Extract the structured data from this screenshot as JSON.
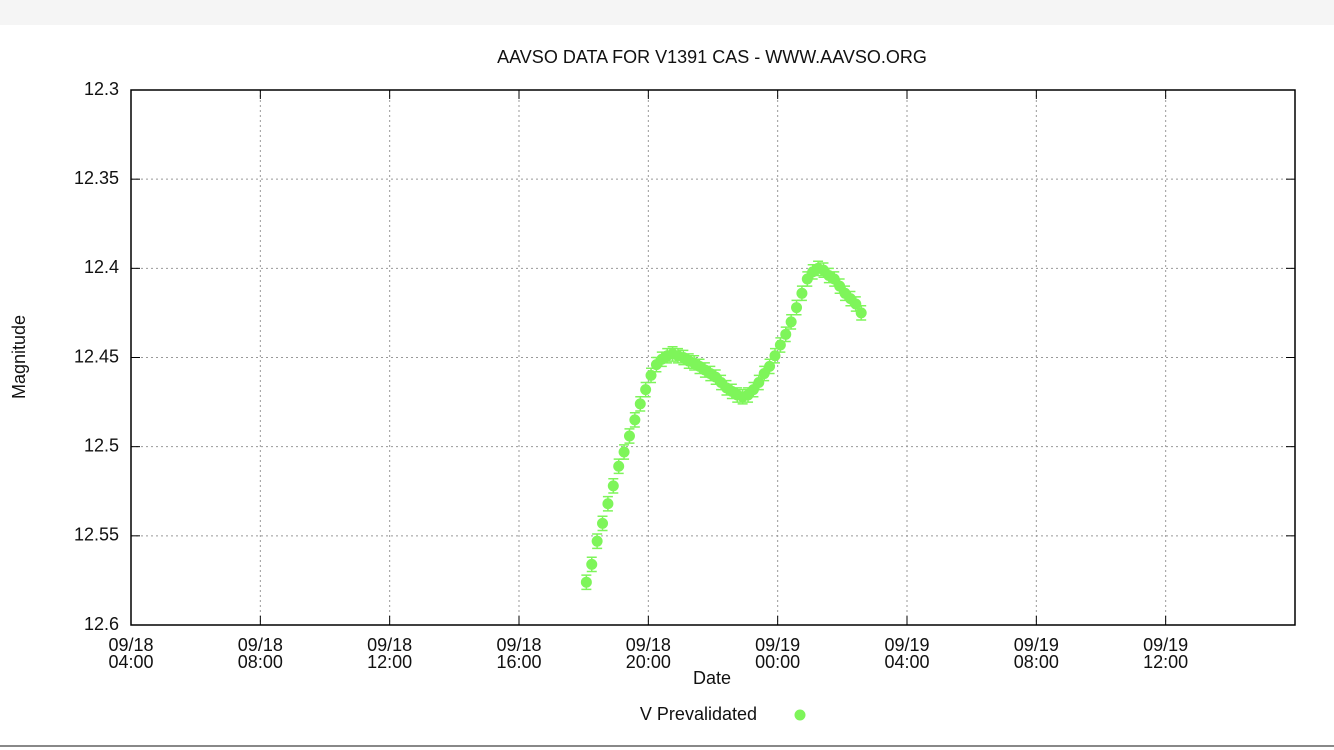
{
  "chart_data": {
    "type": "scatter",
    "title": "AAVSO DATA FOR V1391 CAS - WWW.AAVSO.ORG",
    "x_label": "Date",
    "y_label": "Magnitude",
    "x": [
      "09/18 18:05",
      "09/18 18:15",
      "09/18 18:25",
      "09/18 18:35",
      "09/18 18:45",
      "09/18 18:55",
      "09/18 19:05",
      "09/18 19:15",
      "09/18 19:25",
      "09/18 19:35",
      "09/18 19:45",
      "09/18 19:55",
      "09/18 20:05",
      "09/18 20:15",
      "09/18 20:25",
      "09/18 20:35",
      "09/18 20:45",
      "09/18 20:55",
      "09/18 21:05",
      "09/18 21:15",
      "09/18 21:25",
      "09/18 21:35",
      "09/18 21:45",
      "09/18 21:55",
      "09/18 22:05",
      "09/18 22:15",
      "09/18 22:25",
      "09/18 22:35",
      "09/18 22:45",
      "09/18 22:55",
      "09/18 23:05",
      "09/18 23:15",
      "09/18 23:25",
      "09/18 23:35",
      "09/18 23:45",
      "09/18 23:55",
      "09/19 00:05",
      "09/19 00:15",
      "09/19 00:25",
      "09/19 00:35",
      "09/19 00:45",
      "09/19 00:55",
      "09/19 01:05",
      "09/19 01:15",
      "09/19 01:25",
      "09/19 01:35",
      "09/19 01:45",
      "09/19 01:55",
      "09/19 02:05",
      "09/19 02:15",
      "09/19 02:25",
      "09/19 02:35"
    ],
    "series": [
      {
        "name": "V Prevalidated",
        "color": "#7ef55a",
        "values": [
          12.576,
          12.566,
          12.553,
          12.543,
          12.532,
          12.522,
          12.511,
          12.503,
          12.494,
          12.485,
          12.476,
          12.468,
          12.46,
          12.454,
          12.451,
          12.449,
          12.448,
          12.449,
          12.45,
          12.452,
          12.453,
          12.455,
          12.457,
          12.459,
          12.461,
          12.464,
          12.467,
          12.469,
          12.471,
          12.472,
          12.471,
          12.468,
          12.464,
          12.459,
          12.455,
          12.449,
          12.443,
          12.437,
          12.43,
          12.422,
          12.414,
          12.406,
          12.402,
          12.4,
          12.401,
          12.404,
          12.406,
          12.41,
          12.414,
          12.417,
          12.42,
          12.425
        ],
        "errors": [
          0.004,
          0.004,
          0.004,
          0.004,
          0.004,
          0.004,
          0.004,
          0.004,
          0.004,
          0.004,
          0.004,
          0.004,
          0.004,
          0.004,
          0.004,
          0.004,
          0.004,
          0.004,
          0.004,
          0.004,
          0.004,
          0.004,
          0.004,
          0.004,
          0.004,
          0.004,
          0.004,
          0.004,
          0.004,
          0.004,
          0.004,
          0.004,
          0.004,
          0.004,
          0.004,
          0.004,
          0.004,
          0.004,
          0.004,
          0.004,
          0.004,
          0.004,
          0.004,
          0.004,
          0.004,
          0.004,
          0.004,
          0.004,
          0.004,
          0.004,
          0.004,
          0.004
        ]
      }
    ],
    "xlim": [
      "09/18 04:00",
      "09/19 16:00"
    ],
    "xticks": [
      "09/18 04:00",
      "09/18 08:00",
      "09/18 12:00",
      "09/18 16:00",
      "09/18 20:00",
      "09/19 00:00",
      "09/19 04:00",
      "09/19 08:00",
      "09/19 12:00"
    ],
    "ylim": [
      12.3,
      12.6
    ],
    "y_reversed": true,
    "yticks": [
      12.3,
      12.35,
      12.4,
      12.45,
      12.5,
      12.55,
      12.6
    ],
    "grid": true,
    "legend": "bottom"
  }
}
